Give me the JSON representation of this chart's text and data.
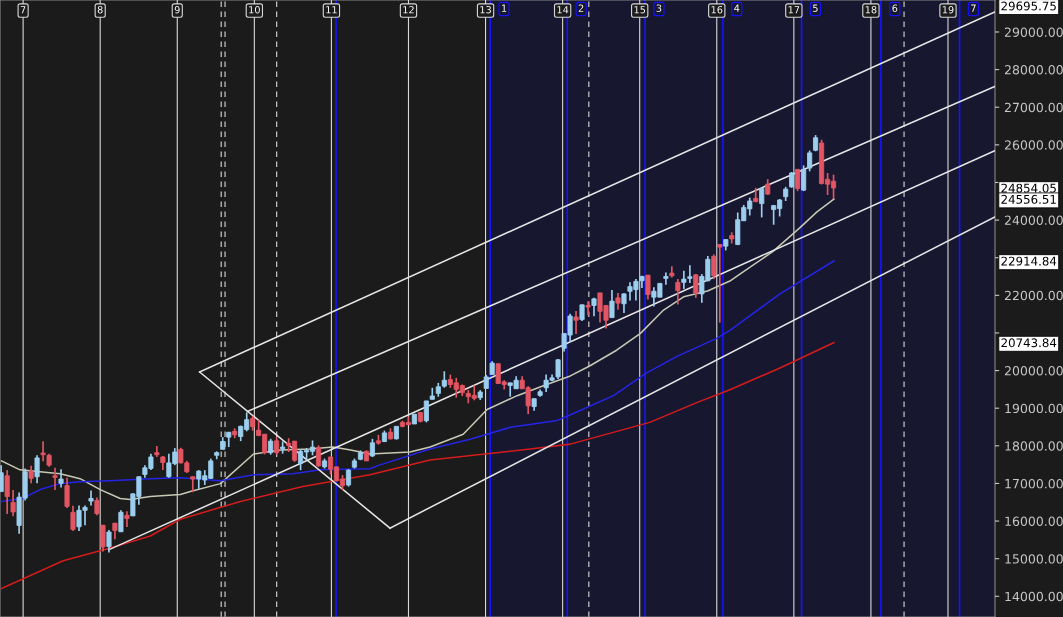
{
  "chart_data": {
    "type": "candlestick",
    "x": [
      6.715,
      6.793,
      6.87,
      6.948,
      7.026,
      7.104,
      7.181,
      7.259,
      7.337,
      7.414,
      7.492,
      7.57,
      7.647,
      7.725,
      7.803,
      7.881,
      7.958,
      8.036,
      8.114,
      8.191,
      8.269,
      8.347,
      8.424,
      8.502,
      8.58,
      8.658,
      8.735,
      8.813,
      8.891,
      8.968,
      9.046,
      9.124,
      9.201,
      9.279,
      9.357,
      9.435,
      9.512,
      9.59,
      9.668,
      9.745,
      9.823,
      9.901,
      9.978,
      10.056,
      10.134,
      10.212,
      10.289,
      10.367,
      10.445,
      10.522,
      10.6,
      10.678,
      10.755,
      10.833,
      10.911,
      10.989,
      11.066,
      11.144,
      11.222,
      11.299,
      11.377,
      11.455,
      11.532,
      11.61,
      11.688,
      11.766,
      11.843,
      11.921,
      11.999,
      12.076,
      12.154,
      12.232,
      12.309,
      12.387,
      12.465,
      12.543,
      12.62,
      12.698,
      12.776,
      12.853,
      12.931,
      13.009,
      13.086,
      13.164,
      13.242,
      13.32,
      13.397,
      13.475,
      13.553,
      13.63,
      13.708,
      13.786,
      13.863,
      13.941,
      14.019,
      14.097,
      14.174,
      14.252,
      14.33,
      14.407,
      14.485,
      14.563,
      14.64,
      14.718,
      14.796,
      14.874,
      14.951,
      15.029,
      15.107,
      15.184,
      15.262,
      15.34,
      15.417,
      15.495,
      15.573,
      15.651,
      15.728,
      15.806,
      15.884,
      15.961,
      16.039,
      16.117,
      16.194,
      16.272,
      16.35,
      16.428,
      16.505,
      16.583,
      16.661,
      16.738,
      16.816,
      16.894,
      16.971,
      17.049,
      17.127,
      17.205,
      17.282,
      17.36,
      17.438,
      17.515
    ],
    "ohlc": [
      [
        16785,
        17485,
        16785,
        17284
      ],
      [
        17205,
        17354,
        16189,
        16653
      ],
      [
        16496,
        16828,
        16128,
        16242
      ],
      [
        15883,
        16758,
        15664,
        16636
      ],
      [
        16609,
        17398,
        16548,
        17310
      ],
      [
        17327,
        17468,
        17004,
        17135
      ],
      [
        17179,
        17748,
        17004,
        17678
      ],
      [
        17809,
        18124,
        17590,
        17765
      ],
      [
        17748,
        17792,
        17441,
        17485
      ],
      [
        17205,
        17415,
        16828,
        17161
      ],
      [
        17004,
        17380,
        16890,
        17117
      ],
      [
        16942,
        17152,
        16347,
        16391
      ],
      [
        16233,
        16408,
        15734,
        15778
      ],
      [
        15848,
        16417,
        15734,
        16286
      ],
      [
        16286,
        16417,
        15892,
        16364
      ],
      [
        16531,
        16811,
        16417,
        16601
      ],
      [
        16548,
        16627,
        16154,
        16198
      ],
      [
        15891,
        15891,
        15191,
        15313
      ],
      [
        15322,
        15760,
        15165,
        15708
      ],
      [
        15944,
        15944,
        15515,
        15751
      ],
      [
        15716,
        16285,
        15716,
        16233
      ],
      [
        16154,
        16259,
        15839,
        16067
      ],
      [
        16137,
        16741,
        16137,
        16723
      ],
      [
        16653,
        17179,
        16434,
        17179
      ],
      [
        17240,
        17485,
        17152,
        17415
      ],
      [
        17398,
        17792,
        17354,
        17704
      ],
      [
        17818,
        17993,
        17704,
        17765
      ],
      [
        17704,
        17730,
        17354,
        17555
      ],
      [
        17179,
        17792,
        17152,
        17546
      ],
      [
        17529,
        17940,
        17485,
        17835
      ],
      [
        17906,
        17950,
        17529,
        17547
      ],
      [
        17547,
        17600,
        17280,
        17310
      ],
      [
        17179,
        17179,
        16767,
        17118
      ],
      [
        17118,
        17354,
        16855,
        17328
      ],
      [
        17091,
        17354,
        16960,
        17205
      ],
      [
        17135,
        17660,
        17118,
        17599
      ],
      [
        17748,
        17853,
        17643,
        17818
      ],
      [
        17906,
        18230,
        17906,
        18116
      ],
      [
        18230,
        18361,
        17967,
        18361
      ],
      [
        18387,
        18466,
        18203,
        18291
      ],
      [
        18247,
        18536,
        18125,
        18519
      ],
      [
        18431,
        18887,
        18387,
        18694
      ],
      [
        18729,
        18799,
        18405,
        18510
      ],
      [
        18414,
        18694,
        18256,
        18274
      ],
      [
        18309,
        18309,
        17774,
        17818
      ],
      [
        17818,
        18186,
        17765,
        18125
      ],
      [
        18133,
        18230,
        17765,
        17818
      ],
      [
        17923,
        18116,
        17792,
        17967
      ],
      [
        18063,
        18203,
        17835,
        18011
      ],
      [
        18125,
        18125,
        17573,
        17617
      ],
      [
        17529,
        17906,
        17354,
        17853
      ],
      [
        17836,
        17941,
        17617,
        17879
      ],
      [
        17853,
        18142,
        17748,
        17967
      ],
      [
        17949,
        18011,
        17442,
        17468
      ],
      [
        17442,
        17660,
        17398,
        17599
      ],
      [
        17704,
        17704,
        17240,
        17380
      ],
      [
        17442,
        17442,
        17047,
        17082
      ],
      [
        17118,
        17223,
        16828,
        16942
      ],
      [
        16960,
        17380,
        16916,
        17354
      ],
      [
        17433,
        17660,
        17398,
        17599
      ],
      [
        17643,
        17879,
        17617,
        17818
      ],
      [
        17853,
        17880,
        17599,
        17599
      ],
      [
        17730,
        18185,
        17704,
        18080
      ],
      [
        18133,
        18291,
        18028,
        18072
      ],
      [
        18115,
        18404,
        18098,
        18343
      ],
      [
        18361,
        18466,
        18168,
        18185
      ],
      [
        18185,
        18518,
        18168,
        18518
      ],
      [
        18623,
        18667,
        18492,
        18518
      ],
      [
        18623,
        18781,
        18553,
        18562
      ],
      [
        18580,
        18842,
        18580,
        18842
      ],
      [
        18886,
        18886,
        18623,
        18650
      ],
      [
        18667,
        19193,
        18623,
        19193
      ],
      [
        19236,
        19543,
        19236,
        19324
      ],
      [
        19394,
        19674,
        19306,
        19569
      ],
      [
        19587,
        19981,
        19543,
        19744
      ],
      [
        19762,
        19893,
        19543,
        19630
      ],
      [
        19674,
        19806,
        19280,
        19499
      ],
      [
        19604,
        19630,
        19324,
        19411
      ],
      [
        19394,
        19481,
        19131,
        19306
      ],
      [
        19341,
        19604,
        19210,
        19263
      ],
      [
        19280,
        19481,
        19219,
        19429
      ],
      [
        19525,
        19884,
        19525,
        19832
      ],
      [
        19893,
        20250,
        19893,
        20200
      ],
      [
        20182,
        20182,
        19656,
        19656
      ],
      [
        19700,
        19744,
        19499,
        19630
      ],
      [
        19604,
        19674,
        19306,
        19674
      ],
      [
        19516,
        19849,
        19516,
        19744
      ],
      [
        19744,
        19849,
        19516,
        19516
      ],
      [
        19543,
        19586,
        18842,
        19061
      ],
      [
        19043,
        19254,
        18930,
        19254
      ],
      [
        19341,
        19499,
        19306,
        19438
      ],
      [
        19543,
        19893,
        19429,
        19744
      ],
      [
        19744,
        19893,
        19718,
        19806
      ],
      [
        19832,
        20305,
        19779,
        20287
      ],
      [
        20593,
        20987,
        20506,
        20987
      ],
      [
        20944,
        21513,
        20768,
        21451
      ],
      [
        21425,
        21583,
        20970,
        21338
      ],
      [
        21355,
        21749,
        21320,
        21749
      ],
      [
        21732,
        21845,
        21469,
        21688
      ],
      [
        21732,
        21933,
        21443,
        21907
      ],
      [
        22064,
        22064,
        21276,
        21574
      ],
      [
        21732,
        21732,
        21119,
        21338
      ],
      [
        21408,
        22143,
        21408,
        21846
      ],
      [
        21933,
        22064,
        21618,
        21793
      ],
      [
        21775,
        22056,
        21530,
        22038
      ],
      [
        22108,
        22345,
        21863,
        22231
      ],
      [
        22152,
        22432,
        21863,
        22371
      ],
      [
        22388,
        22520,
        22196,
        22502
      ],
      [
        22537,
        22537,
        21889,
        22021
      ],
      [
        21951,
        22213,
        21705,
        22108
      ],
      [
        21951,
        22318,
        21951,
        22318
      ],
      [
        22450,
        22607,
        22283,
        22502
      ],
      [
        22590,
        22774,
        22476,
        22520
      ],
      [
        22345,
        22432,
        21758,
        22126
      ],
      [
        22345,
        22651,
        22169,
        22432
      ],
      [
        22450,
        22800,
        22327,
        22494
      ],
      [
        22546,
        22563,
        21933,
        22056
      ],
      [
        22038,
        22563,
        21802,
        22502
      ],
      [
        22388,
        23045,
        22371,
        22958
      ],
      [
        23036,
        23089,
        22432,
        22520
      ],
      [
        23352,
        23352,
        21276,
        23282
      ],
      [
        23308,
        23483,
        23194,
        23483
      ],
      [
        23588,
        23676,
        23378,
        23501
      ],
      [
        23352,
        24201,
        23334,
        24009
      ],
      [
        23982,
        24403,
        23982,
        24333
      ],
      [
        24298,
        24595,
        24122,
        24508
      ],
      [
        24578,
        24858,
        24473,
        24490
      ],
      [
        24438,
        24858,
        24070,
        24840
      ],
      [
        24954,
        25086,
        24665,
        24692
      ],
      [
        24280,
        24403,
        23877,
        24385
      ],
      [
        24306,
        24560,
        24096,
        24534
      ],
      [
        24622,
        24884,
        24508,
        24823
      ],
      [
        24884,
        25278,
        24858,
        25252
      ],
      [
        25348,
        25348,
        24770,
        24840
      ],
      [
        24797,
        25453,
        24770,
        25348
      ],
      [
        25383,
        25848,
        25296,
        25786
      ],
      [
        25856,
        26259,
        25830,
        26189
      ],
      [
        26049,
        26136,
        24945,
        24972
      ],
      [
        25086,
        25252,
        24665,
        24954
      ],
      [
        25033,
        25208,
        24560,
        24854.05
      ]
    ],
    "colors": [
      "#9ccfee",
      "#e25563",
      "#e25563",
      "#9ccfee",
      "#9ccfee",
      "#e25563",
      "#9ccfee",
      "#e25563",
      "#e25563",
      "#e25563",
      "#9ccfee",
      "#e25563",
      "#e25563",
      "#9ccfee",
      "#9ccfee",
      "#9ccfee",
      "#e25563",
      "#e25563",
      "#9ccfee",
      "#e25563",
      "#9ccfee",
      "#e25563",
      "#9ccfee",
      "#9ccfee",
      "#9ccfee",
      "#9ccfee",
      "#e25563",
      "#e25563",
      "#9ccfee",
      "#9ccfee",
      "#e25563",
      "#e25563",
      "#e25563",
      "#9ccfee",
      "#9ccfee",
      "#9ccfee",
      "#9ccfee",
      "#9ccfee",
      "#9ccfee",
      "#e25563",
      "#9ccfee",
      "#9ccfee",
      "#e25563",
      "#e25563",
      "#e25563",
      "#9ccfee",
      "#e25563",
      "#9ccfee",
      "#e25563",
      "#e25563",
      "#9ccfee",
      "#9ccfee",
      "#9ccfee",
      "#e25563",
      "#9ccfee",
      "#e25563",
      "#e25563",
      "#e25563",
      "#9ccfee",
      "#9ccfee",
      "#9ccfee",
      "#e25563",
      "#9ccfee",
      "#e25563",
      "#9ccfee",
      "#e25563",
      "#9ccfee",
      "#e25563",
      "#e25563",
      "#9ccfee",
      "#e25563",
      "#9ccfee",
      "#9ccfee",
      "#9ccfee",
      "#9ccfee",
      "#e25563",
      "#e25563",
      "#e25563",
      "#e25563",
      "#e25563",
      "#9ccfee",
      "#9ccfee",
      "#9ccfee",
      "#e25563",
      "#e25563",
      "#9ccfee",
      "#9ccfee",
      "#e25563",
      "#e25563",
      "#9ccfee",
      "#9ccfee",
      "#9ccfee",
      "#9ccfee",
      "#9ccfee",
      "#9ccfee",
      "#9ccfee",
      "#e25563",
      "#9ccfee",
      "#e25563",
      "#9ccfee",
      "#e25563",
      "#e25563",
      "#9ccfee",
      "#e25563",
      "#9ccfee",
      "#9ccfee",
      "#9ccfee",
      "#9ccfee",
      "#e25563",
      "#9ccfee",
      "#9ccfee",
      "#9ccfee",
      "#e25563",
      "#e25563",
      "#9ccfee",
      "#9ccfee",
      "#e25563",
      "#9ccfee",
      "#9ccfee",
      "#e25563",
      "#e25563",
      "#9ccfee",
      "#e25563",
      "#9ccfee",
      "#9ccfee",
      "#9ccfee",
      "#e25563",
      "#9ccfee",
      "#e25563",
      "#9ccfee",
      "#9ccfee",
      "#9ccfee",
      "#9ccfee",
      "#e25563",
      "#9ccfee",
      "#9ccfee",
      "#9ccfee",
      "#e25563",
      "#e25563",
      "#e25563"
    ],
    "series": [
      {
        "type": "line",
        "color": "#c8c8b4",
        "x": [
          6.72,
          6.96,
          7.22,
          7.48,
          7.74,
          8.0,
          8.26,
          8.39,
          8.65,
          9.04,
          9.17,
          9.56,
          9.99,
          10.34,
          10.72,
          11.02,
          11.25,
          11.5,
          12.02,
          12.28,
          12.71,
          13.02,
          13.41,
          13.75,
          14.1,
          14.35,
          14.7,
          15.01,
          15.3,
          15.57,
          15.88,
          16.17,
          16.3,
          16.73,
          17.08,
          17.3,
          17.52
        ],
        "values": [
          17599,
          17362,
          17310,
          17257,
          17126,
          16837,
          16601,
          16574,
          16653,
          16706,
          16785,
          16995,
          17783,
          17888,
          17914,
          17967,
          17888,
          17783,
          17835,
          17967,
          18308,
          18965,
          19333,
          19595,
          19858,
          20121,
          20541,
          20988,
          21592,
          21960,
          22117,
          22380,
          22564,
          23168,
          23799,
          24219,
          24556.51
        ]
      },
      {
        "type": "line",
        "color": "#2424e6",
        "x": [
          6.72,
          6.99,
          7.22,
          7.48,
          7.74,
          8.13,
          8.65,
          9.04,
          9.56,
          9.99,
          10.5,
          10.86,
          11.5,
          11.63,
          12.28,
          12.8,
          13.32,
          13.93,
          14.08,
          14.66,
          15.09,
          15.49,
          16.0,
          16.17,
          16.82,
          17.52
        ],
        "values": [
          16522,
          16601,
          16837,
          16995,
          17047,
          17073,
          17126,
          17152,
          17073,
          17231,
          17257,
          17362,
          17389,
          17494,
          17914,
          18177,
          18492,
          18676,
          18807,
          19333,
          19937,
          20384,
          20857,
          21067,
          22039,
          22914.84
        ]
      },
      {
        "type": "line",
        "color": "#d41c1c",
        "x": [
          6.72,
          7.52,
          8.13,
          8.65,
          9.04,
          9.82,
          10.63,
          11.5,
          12.28,
          13.58,
          14.1,
          15.13,
          15.74,
          16.17,
          16.82,
          17.52
        ],
        "values": [
          14210,
          14946,
          15287,
          15602,
          16049,
          16522,
          16916,
          17231,
          17625,
          17914,
          18045,
          18623,
          19149,
          19490,
          20068,
          20743.84
        ]
      },
      {
        "type": "line",
        "color": "#e6e6e6",
        "x": [
          9.29,
          19.61
        ],
        "values": [
          19963,
          29536
        ]
      },
      {
        "type": "line",
        "color": "#e6e6e6",
        "x": [
          9.91,
          19.61
        ],
        "values": [
          18912,
          27555
        ]
      },
      {
        "type": "line",
        "color": "#e6e6e6",
        "x": [
          8.11,
          19.61
        ],
        "values": [
          15235,
          25848
        ]
      },
      {
        "type": "line",
        "color": "#e6e6e6",
        "x": [
          11.76,
          19.61
        ],
        "values": [
          15813,
          24088
        ]
      },
      {
        "type": "line",
        "color": "#e6e6e6",
        "x": [
          9.29,
          11.76
        ],
        "values": [
          19963,
          15813
        ]
      }
    ],
    "xlim": [
      6.7,
      19.61
    ],
    "xticks": [
      7,
      8,
      9,
      10,
      11,
      12,
      13,
      14,
      15,
      16,
      17,
      18,
      19
    ],
    "grid": "x",
    "ylim": [
      13450,
      29850
    ],
    "y2lim": [
      13450,
      29850
    ],
    "y2ticks": [
      29695.75,
      24854.05,
      24556.51,
      22914.84,
      20743.84
    ],
    "yticks": [
      {
        "value": 14000,
        "label": "14000.00"
      },
      {
        "value": 15000,
        "label": "15000.00"
      },
      {
        "value": 16000,
        "label": "16000.00"
      },
      {
        "value": 17000,
        "label": "17000.00"
      },
      {
        "value": 18000,
        "label": "18000.00"
      },
      {
        "value": 19000,
        "label": "19000.00"
      },
      {
        "value": 20000,
        "label": "20000.00"
      },
      {
        "value": 21000,
        "label": null
      },
      {
        "value": 22000,
        "label": "22000.00"
      },
      {
        "value": 23000,
        "label": null
      },
      {
        "value": 24000,
        "label": "24000.00"
      },
      {
        "value": 25000,
        "label": null
      },
      {
        "value": 26000,
        "label": "26000.00"
      },
      {
        "value": 27000,
        "label": "27000.00"
      },
      {
        "value": 28000,
        "label": "28000.00"
      },
      {
        "value": 29000,
        "label": "29000.00"
      }
    ],
    "bands": [
      {
        "axis": "x",
        "from": 13.0,
        "to": 19.61,
        "color": "#17172f"
      }
    ],
    "ref_lines": [
      {
        "axis": "x",
        "value": 11.06,
        "color": "#1414ff"
      },
      {
        "axis": "x",
        "value": 13.06,
        "color": "#1414ff"
      },
      {
        "axis": "x",
        "value": 14.06,
        "color": "#1414ff"
      },
      {
        "axis": "x",
        "value": 15.07,
        "color": "#1414ff"
      },
      {
        "axis": "x",
        "value": 16.08,
        "color": "#1414ff"
      },
      {
        "axis": "x",
        "value": 17.1,
        "color": "#1414ff"
      },
      {
        "axis": "x",
        "value": 18.13,
        "color": "#1414ff"
      },
      {
        "axis": "x",
        "value": 19.15,
        "color": "#1414ff"
      },
      {
        "axis": "x",
        "value": 9.57,
        "color": "#d8d8d8",
        "line_style": "dashed"
      },
      {
        "axis": "x",
        "value": 9.62,
        "color": "#d8d8d8",
        "line_style": "dashed"
      },
      {
        "axis": "x",
        "value": 10.29,
        "color": "#d8d8d8",
        "line_style": "dashed"
      },
      {
        "axis": "x",
        "value": 14.34,
        "color": "#d8d8d8",
        "line_style": "dashed"
      },
      {
        "axis": "x",
        "value": 18.43,
        "color": "#d8d8d8",
        "line_style": "dashed"
      }
    ],
    "annotations": [
      {
        "text": "1",
        "x": 13.06
      },
      {
        "text": "2",
        "x": 14.06
      },
      {
        "text": "3",
        "x": 15.07
      },
      {
        "text": "4",
        "x": 16.08
      },
      {
        "text": "5",
        "x": 17.1
      },
      {
        "text": "6",
        "x": 18.13
      },
      {
        "text": "7",
        "x": 19.15
      }
    ]
  }
}
